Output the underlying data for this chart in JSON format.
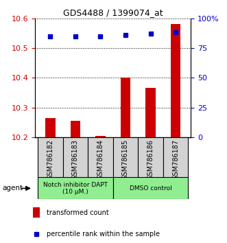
{
  "title": "GDS4488 / 1399074_at",
  "samples": [
    "GSM786182",
    "GSM786183",
    "GSM786184",
    "GSM786185",
    "GSM786186",
    "GSM786187"
  ],
  "bar_values": [
    10.265,
    10.255,
    10.205,
    10.4,
    10.365,
    10.58
  ],
  "bar_bottom": 10.2,
  "percentile_values": [
    85,
    85,
    85,
    86,
    87,
    88
  ],
  "bar_color": "#cc0000",
  "dot_color": "#0000cc",
  "ylim_left": [
    10.2,
    10.6
  ],
  "ylim_right": [
    0,
    100
  ],
  "yticks_left": [
    10.2,
    10.3,
    10.4,
    10.5,
    10.6
  ],
  "yticks_right": [
    0,
    25,
    50,
    75,
    100
  ],
  "ytick_labels_right": [
    "0",
    "25",
    "50",
    "75",
    "100%"
  ],
  "group1_label": "Notch inhibitor DAPT\n(10 μM.)",
  "group2_label": "DMSO control",
  "group_color": "#90ee90",
  "agent_label": "agent",
  "legend_bar_label": "transformed count",
  "legend_dot_label": "percentile rank within the sample",
  "tick_label_color_left": "#cc0000",
  "tick_label_color_right": "#0000cc",
  "sample_box_color": "#d3d3d3",
  "bar_width": 0.4
}
